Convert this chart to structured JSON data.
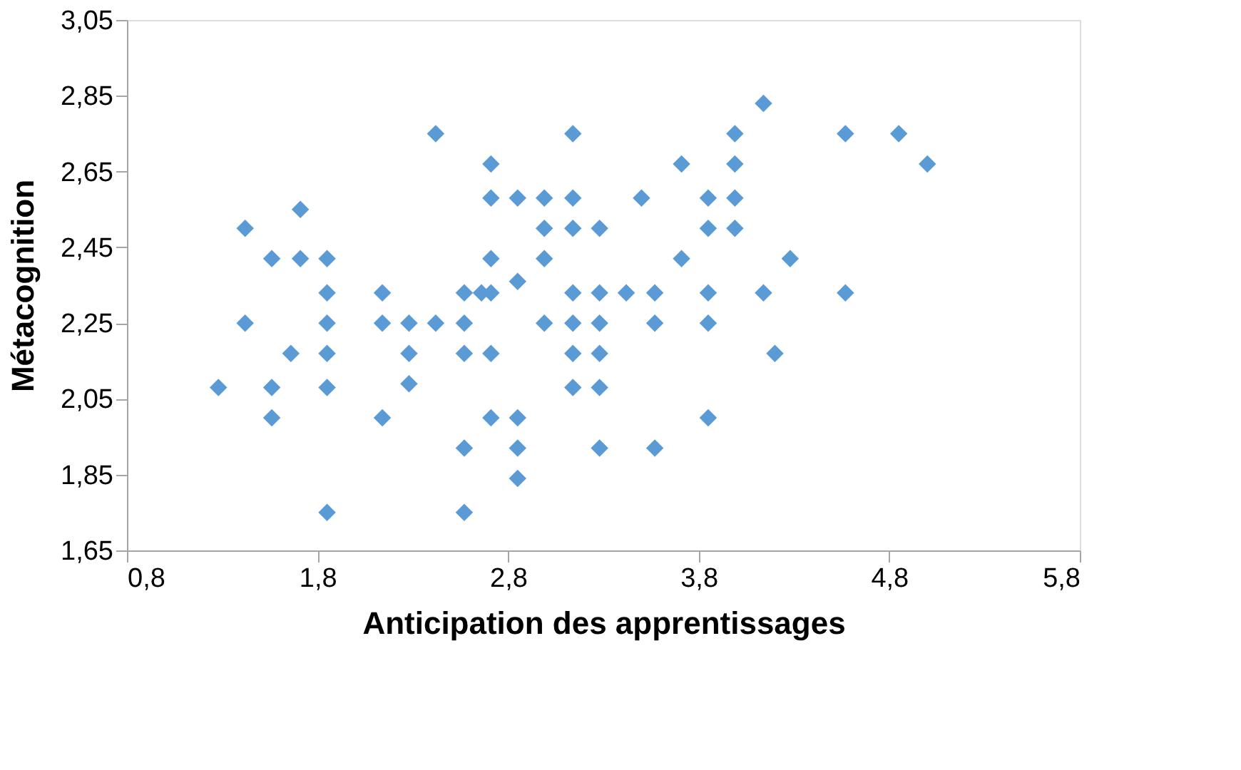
{
  "chart_data": {
    "type": "scatter",
    "xlabel": "Anticipation des apprentissages",
    "ylabel": "Métacognition",
    "marker": "diamond",
    "grid": false,
    "legend": false,
    "xlim": [
      0.8,
      5.8
    ],
    "ylim": [
      1.65,
      3.05
    ],
    "xticks": [
      {
        "value": 0.8,
        "label": "0,8"
      },
      {
        "value": 1.8,
        "label": "1,8"
      },
      {
        "value": 2.8,
        "label": "2,8"
      },
      {
        "value": 3.8,
        "label": "3,8"
      },
      {
        "value": 4.8,
        "label": "4,8"
      },
      {
        "value": 5.8,
        "label": "5,8"
      }
    ],
    "yticks": [
      {
        "value": 1.65,
        "label": "1,65"
      },
      {
        "value": 1.85,
        "label": "1,85"
      },
      {
        "value": 2.05,
        "label": "2,05"
      },
      {
        "value": 2.25,
        "label": "2,25"
      },
      {
        "value": 2.45,
        "label": "2,45"
      },
      {
        "value": 2.65,
        "label": "2,65"
      },
      {
        "value": 2.85,
        "label": "2,85"
      },
      {
        "value": 3.05,
        "label": "3,05"
      }
    ],
    "series": [
      {
        "color": "#5b9bd5",
        "x": [
          1.28,
          1.42,
          1.42,
          1.56,
          1.56,
          1.56,
          1.66,
          1.71,
          1.71,
          1.85,
          1.85,
          1.85,
          1.85,
          1.85,
          1.85,
          2.14,
          2.14,
          2.14,
          2.28,
          2.28,
          2.28,
          2.42,
          2.42,
          2.57,
          2.57,
          2.57,
          2.57,
          2.57,
          2.66,
          2.71,
          2.71,
          2.71,
          2.71,
          2.71,
          2.71,
          2.85,
          2.85,
          2.85,
          2.85,
          2.85,
          2.99,
          2.99,
          2.99,
          2.99,
          3.14,
          3.14,
          3.14,
          3.14,
          3.14,
          3.14,
          3.14,
          3.28,
          3.28,
          3.28,
          3.28,
          3.28,
          3.28,
          3.42,
          3.5,
          3.57,
          3.57,
          3.57,
          3.71,
          3.71,
          3.85,
          3.85,
          3.85,
          3.85,
          3.85,
          3.99,
          3.99,
          3.99,
          3.99,
          4.14,
          4.14,
          4.2,
          4.28,
          4.57,
          4.57,
          4.85,
          5.0
        ],
        "values": [
          2.08,
          2.5,
          2.25,
          2.42,
          2.08,
          2.0,
          2.17,
          2.55,
          2.42,
          2.42,
          2.33,
          2.25,
          2.17,
          2.08,
          1.75,
          2.33,
          2.25,
          2.0,
          2.25,
          2.17,
          2.09,
          2.75,
          2.25,
          2.33,
          2.25,
          2.17,
          1.92,
          1.75,
          2.33,
          2.33,
          2.67,
          2.58,
          2.42,
          2.17,
          2.0,
          2.58,
          2.36,
          2.0,
          1.92,
          1.84,
          2.58,
          2.5,
          2.42,
          2.25,
          2.75,
          2.58,
          2.5,
          2.33,
          2.25,
          2.17,
          2.08,
          2.5,
          2.33,
          2.25,
          2.17,
          2.08,
          1.92,
          2.33,
          2.58,
          2.33,
          2.25,
          1.92,
          2.67,
          2.42,
          2.58,
          2.5,
          2.33,
          2.25,
          2.0,
          2.75,
          2.67,
          2.58,
          2.5,
          2.83,
          2.33,
          2.17,
          2.42,
          2.75,
          2.33,
          2.75,
          2.67
        ]
      }
    ]
  }
}
